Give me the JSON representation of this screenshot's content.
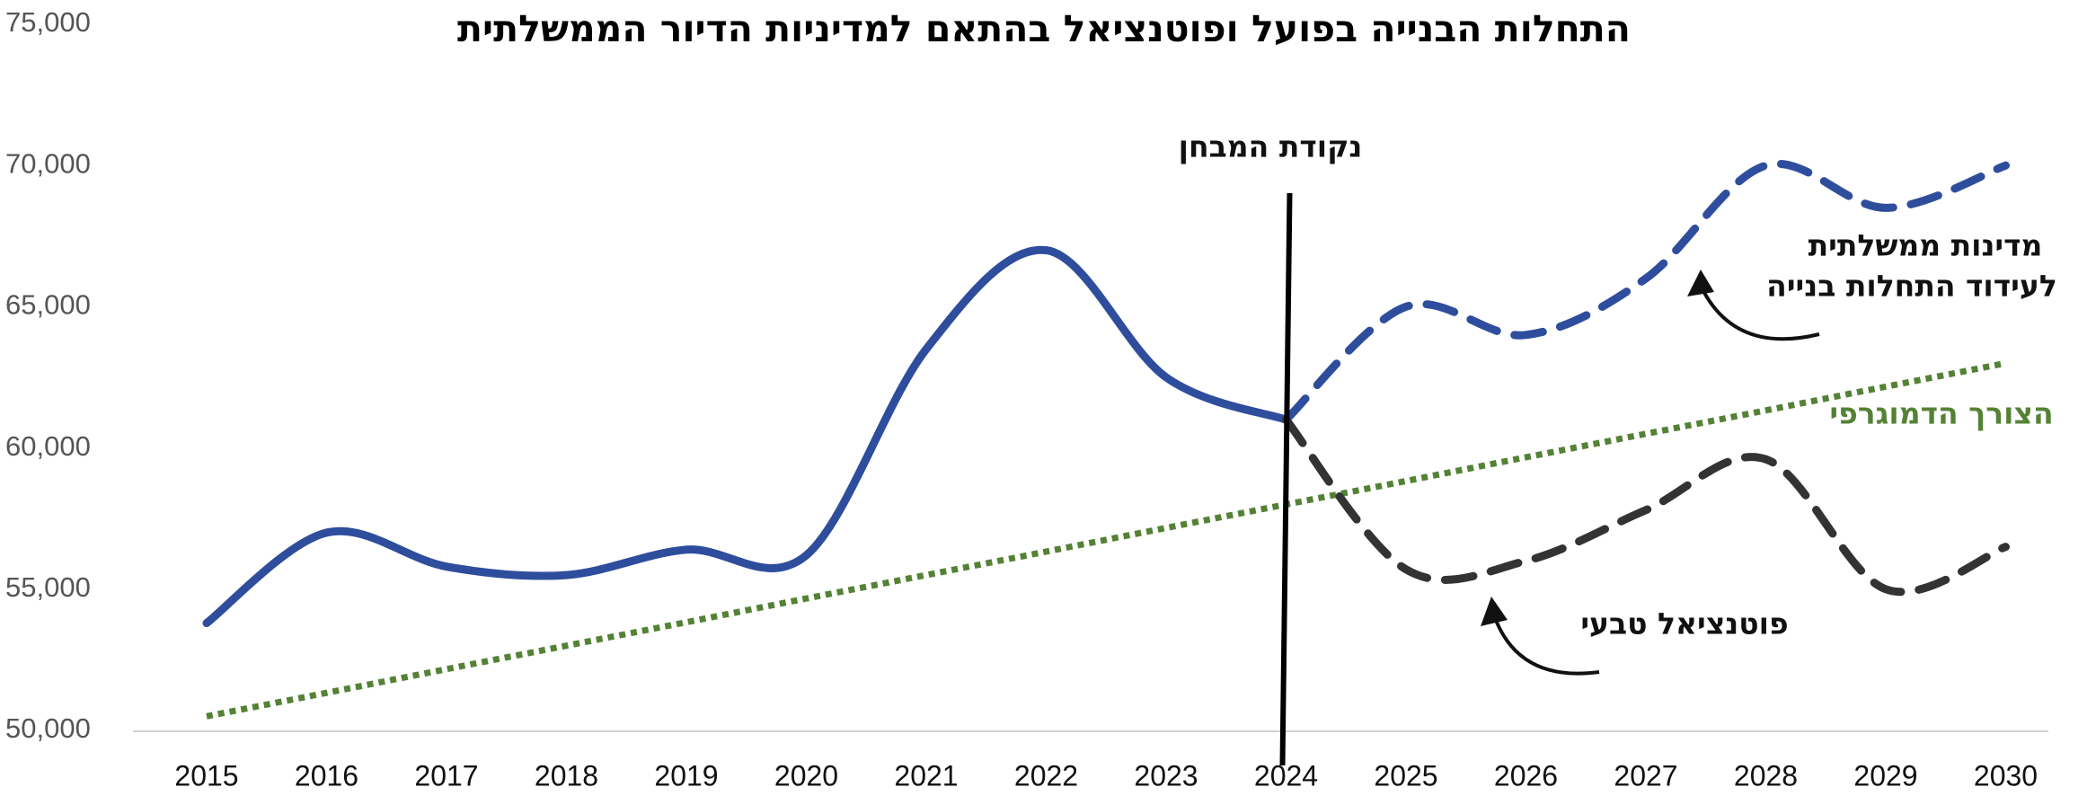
{
  "chart_data": {
    "type": "line",
    "title": "התחלות הבנייה בפועל ופוטנציאל בהתאם למדיניות הדיור הממשלתית",
    "categories": [
      "2015",
      "2016",
      "2017",
      "2018",
      "2019",
      "2020",
      "2021",
      "2022",
      "2023",
      "2024",
      "2025",
      "2026",
      "2027",
      "2028",
      "2029",
      "2030"
    ],
    "series": [
      {
        "color": "#2e4d9c",
        "style": "solid",
        "values": [
          53800,
          57000,
          55800,
          55500,
          56400,
          56200,
          63500,
          67000,
          62500,
          61000,
          null,
          null,
          null,
          null,
          null,
          null
        ]
      },
      {
        "color": "#2e4d9c",
        "style": "dashed",
        "values": [
          null,
          null,
          null,
          null,
          null,
          null,
          null,
          null,
          null,
          61000,
          65000,
          64000,
          66000,
          70000,
          68500,
          70000
        ]
      },
      {
        "color": "#333333",
        "style": "dashed",
        "values": [
          null,
          null,
          null,
          null,
          null,
          null,
          null,
          null,
          null,
          61000,
          55700,
          56000,
          57800,
          59600,
          55000,
          56500
        ]
      },
      {
        "color": "#548235",
        "style": "dotted",
        "values": [
          50500,
          51330,
          52170,
          53000,
          53830,
          54670,
          55500,
          56330,
          57170,
          58000,
          58830,
          59670,
          60500,
          61330,
          62170,
          63000
        ]
      }
    ],
    "annotations": [
      {
        "text": "נקודת המבחן",
        "x": "2024"
      },
      {
        "text": "מדינות ממשלתית"
      },
      {
        "text": "לעידוד התחלות בנייה"
      },
      {
        "text": "הצורך הדמוגרפי",
        "color": "#548235"
      },
      {
        "text": "פוטנציאל טבעי"
      }
    ],
    "ylim": [
      50000,
      75000
    ],
    "yticks": [
      {
        "value": 50000,
        "label": "50,000"
      },
      {
        "value": 55000,
        "label": "55,000"
      },
      {
        "value": 60000,
        "label": "60,000"
      },
      {
        "value": 65000,
        "label": "65,000"
      },
      {
        "value": 70000,
        "label": "70,000"
      },
      {
        "value": 75000,
        "label": "75,000"
      }
    ],
    "grid": false
  }
}
